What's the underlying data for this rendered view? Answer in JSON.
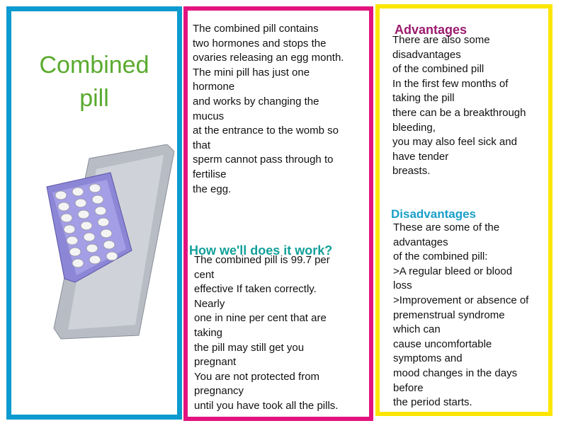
{
  "panel1": {
    "title_lines": [
      "Combined",
      "pill"
    ]
  },
  "panel2": {
    "intro_lines": [
      "The combined pill contains",
      "two hormones and stops the",
      "ovaries releasing an egg month.",
      "The mini pill has just one",
      "hormone",
      "and works by changing the",
      "mucus",
      "at the entrance to the womb so",
      "that",
      "sperm cannot pass through to",
      "fertilise",
      "the egg."
    ],
    "how_heading": "How we'll does it work?",
    "how_lines": [
      "The combined pill is 99.7 per",
      "cent",
      "effective If taken correctly.",
      "Nearly",
      "one in nine per cent that are",
      "taking",
      "the pill may still get you",
      "pregnant",
      "You are not protected from",
      "pregnancy",
      "until you have took all the pills."
    ]
  },
  "panel3": {
    "advantages_heading": "Advantages",
    "advantages_lines": [
      "There are also some",
      "disadvantages",
      "of the combined pill",
      "In the first few months of",
      "taking the pill",
      "there can be a breakthrough",
      "bleeding,",
      "you may also feel sick and",
      "have tender",
      "breasts."
    ],
    "disadvantages_heading": "Disadvantages",
    "disadvantages_lines": [
      "These are some of the",
      "advantages",
      "of the combined pill:",
      ">A regular bleed or blood",
      "loss",
      ">Improvement or absence of",
      "premenstrual syndrome",
      "which can",
      "cause uncomfortable",
      "symptoms and",
      "mood changes in the days",
      "before",
      "the period starts."
    ]
  },
  "colors": {
    "blue": "#0b9bcf",
    "pink": "#e2137f",
    "yellow": "#fce600",
    "green": "#5aaa2e",
    "teal": "#13a09a",
    "purple": "#9b1b6e",
    "cyan": "#1a9fc9"
  }
}
